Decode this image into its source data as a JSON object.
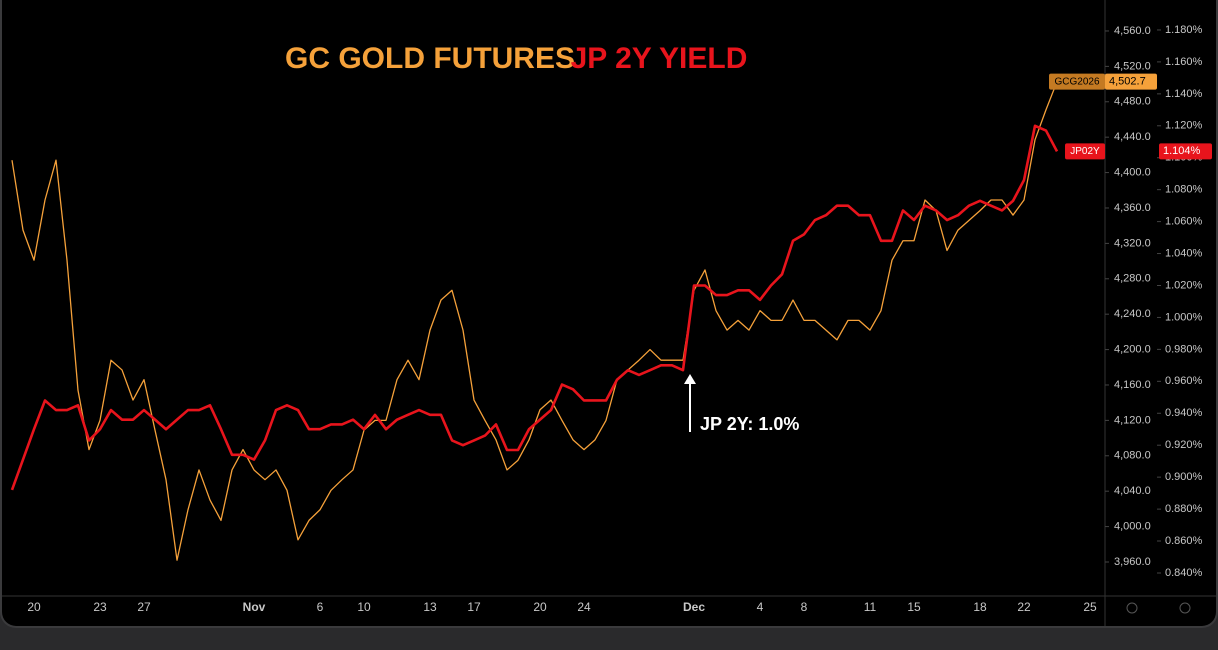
{
  "chart_data": {
    "type": "line",
    "categories": [
      null,
      null,
      "20",
      null,
      null,
      null,
      null,
      null,
      "23",
      null,
      null,
      null,
      "27",
      null,
      null,
      null,
      null,
      null,
      null,
      null,
      null,
      null,
      "Nov",
      null,
      null,
      null,
      null,
      null,
      "6",
      null,
      null,
      null,
      "10",
      null,
      null,
      null,
      null,
      null,
      "13",
      null,
      null,
      null,
      "17",
      null,
      null,
      null,
      null,
      null,
      "20",
      null,
      null,
      null,
      "24",
      null,
      null,
      null,
      null,
      null,
      null,
      null,
      null,
      null,
      "Dec",
      null,
      null,
      null,
      null,
      null,
      "4",
      null,
      null,
      null,
      "8",
      null,
      null,
      null,
      null,
      null,
      "11",
      null,
      null,
      null,
      "15",
      null,
      null,
      null,
      null,
      null,
      "18",
      null,
      null,
      null,
      "22",
      null,
      null,
      null,
      null,
      null,
      "25"
    ],
    "series": [
      {
        "name": "GC GOLD FUTURES",
        "color": "#f5a13a",
        "axis": "y",
        "tag": "GCG2026",
        "last_value_label": "4,502.7",
        "values": [
          4414,
          4335,
          4301,
          4369,
          4414,
          4301,
          4154,
          4087,
          4120,
          4188,
          4177,
          4143,
          4166,
          4109,
          4053,
          3962,
          4019,
          4064,
          4030,
          4007,
          4064,
          4087,
          4064,
          4053,
          4064,
          4041,
          3985,
          4007,
          4019,
          4041,
          4053,
          4064,
          4109,
          4120,
          4120,
          4166,
          4188,
          4166,
          4222,
          4256,
          4267,
          4222,
          4143,
          4120,
          4098,
          4064,
          4075,
          4098,
          4132,
          4143,
          4120,
          4098,
          4087,
          4098,
          4120,
          4166,
          4177,
          4188,
          4200,
          4188,
          4188,
          4188,
          4267,
          4290,
          4244,
          4222,
          4233,
          4222,
          4244,
          4233,
          4233,
          4256,
          4233,
          4233,
          4222,
          4211,
          4233,
          4233,
          4222,
          4244,
          4301,
          4323,
          4323,
          4369,
          4357,
          4312,
          4335,
          4346,
          4357,
          4369,
          4369,
          4352,
          4369,
          4437,
          4471,
          4502.7,
          null,
          null,
          null
        ]
      },
      {
        "name": "JP 2Y YIELD",
        "color": "#e8141c",
        "axis": "y2",
        "tag": "JP02Y",
        "last_value_label": "1.104%",
        "values": [
          0.892,
          0.911,
          0.93,
          0.948,
          0.942,
          0.942,
          0.945,
          0.923,
          0.93,
          0.942,
          0.936,
          0.936,
          0.942,
          0.936,
          0.93,
          0.936,
          0.942,
          0.942,
          0.945,
          0.93,
          0.914,
          0.914,
          0.911,
          0.923,
          0.942,
          0.945,
          0.942,
          0.93,
          0.93,
          0.933,
          0.933,
          0.936,
          0.93,
          0.939,
          0.93,
          0.936,
          0.939,
          0.942,
          0.939,
          0.939,
          0.923,
          0.92,
          0.923,
          0.926,
          0.933,
          0.917,
          0.917,
          0.93,
          0.936,
          0.942,
          0.958,
          0.955,
          0.948,
          0.948,
          0.948,
          0.961,
          0.967,
          0.964,
          0.967,
          0.97,
          0.97,
          0.967,
          1.02,
          1.02,
          1.014,
          1.014,
          1.017,
          1.017,
          1.011,
          1.02,
          1.027,
          1.048,
          1.052,
          1.061,
          1.064,
          1.07,
          1.07,
          1.064,
          1.064,
          1.048,
          1.048,
          1.067,
          1.061,
          1.07,
          1.067,
          1.061,
          1.064,
          1.07,
          1.073,
          1.07,
          1.067,
          1.073,
          1.086,
          1.12,
          1.117,
          1.104,
          null,
          null,
          null
        ]
      }
    ],
    "ylim": [
      3922.7,
      4583.7
    ],
    "yticks": [
      {
        "value": 3960,
        "label": "3,960.0"
      },
      {
        "value": 4000,
        "label": "4,000.0"
      },
      {
        "value": 4040,
        "label": "4,040.0"
      },
      {
        "value": 4080,
        "label": "4,080.0"
      },
      {
        "value": 4120,
        "label": "4,120.0"
      },
      {
        "value": 4160,
        "label": "4,160.0"
      },
      {
        "value": 4200,
        "label": "4,200.0"
      },
      {
        "value": 4240,
        "label": "4,240.0"
      },
      {
        "value": 4280,
        "label": "4,280.0"
      },
      {
        "value": 4320,
        "label": "4,320.0"
      },
      {
        "value": 4360,
        "label": "4,360.0"
      },
      {
        "value": 4400,
        "label": "4,400.0"
      },
      {
        "value": 4440,
        "label": "4,440.0"
      },
      {
        "value": 4480,
        "label": "4,480.0"
      },
      {
        "value": 4520,
        "label": "4,520.0"
      },
      {
        "value": 4560,
        "label": "4,560.0"
      }
    ],
    "y2lim": [
      0.8262,
      1.1925
    ],
    "y2ticks": [
      {
        "value": 0.84,
        "label": "0.840%"
      },
      {
        "value": 0.86,
        "label": "0.860%"
      },
      {
        "value": 0.88,
        "label": "0.880%"
      },
      {
        "value": 0.9,
        "label": "0.900%"
      },
      {
        "value": 0.92,
        "label": "0.920%"
      },
      {
        "value": 0.94,
        "label": "0.940%"
      },
      {
        "value": 0.96,
        "label": "0.960%"
      },
      {
        "value": 0.98,
        "label": "0.980%"
      },
      {
        "value": 1.0,
        "label": "1.000%"
      },
      {
        "value": 1.02,
        "label": "1.020%"
      },
      {
        "value": 1.04,
        "label": "1.040%"
      },
      {
        "value": 1.06,
        "label": "1.060%"
      },
      {
        "value": 1.08,
        "label": "1.080%"
      },
      {
        "value": 1.1,
        "label": "1.100%"
      },
      {
        "value": 1.12,
        "label": "1.120%"
      },
      {
        "value": 1.14,
        "label": "1.140%"
      },
      {
        "value": 1.16,
        "label": "1.160%"
      },
      {
        "value": 1.18,
        "label": "1.180%"
      }
    ],
    "annotation": "JP 2Y: 1.0%"
  }
}
